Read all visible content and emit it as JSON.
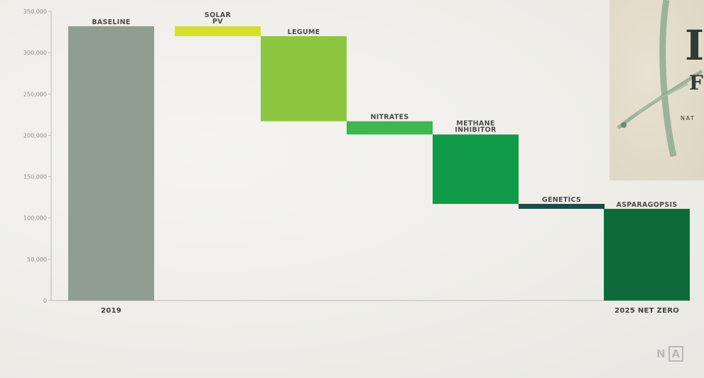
{
  "chart_data": {
    "type": "bar",
    "subtype": "waterfall",
    "yticks": [
      "0",
      "50,000",
      "100,000",
      "150,000",
      "200,000",
      "250,000",
      "300,000",
      "350,000"
    ],
    "ylim": [
      0,
      350000
    ],
    "x_labels": [
      "2019",
      "2025 NET ZERO"
    ],
    "series": [
      {
        "name": "BASELINE",
        "start": 0,
        "end": 332000,
        "color": "#8f9e90"
      },
      {
        "name": "SOLAR PV",
        "start": 332000,
        "end": 320000,
        "color": "#d5e02e"
      },
      {
        "name": "LEGUME",
        "start": 320000,
        "end": 217000,
        "color": "#8dc641"
      },
      {
        "name": "NITRATES",
        "start": 217000,
        "end": 201000,
        "color": "#3fb650"
      },
      {
        "name": "METHANE INHIBITOR",
        "start": 201000,
        "end": 117000,
        "color": "#119a47"
      },
      {
        "name": "GENETICS",
        "start": 117000,
        "end": 111000,
        "color": "#1b4a4a"
      },
      {
        "name": "ASPARAGOPSIS",
        "start": 0,
        "end": 111000,
        "color": "#0f6a3a"
      }
    ]
  },
  "logo": {
    "letter": "I",
    "sub": "F",
    "tagline": "NAT"
  },
  "watermark": {
    "left": "N",
    "mid": "A"
  }
}
